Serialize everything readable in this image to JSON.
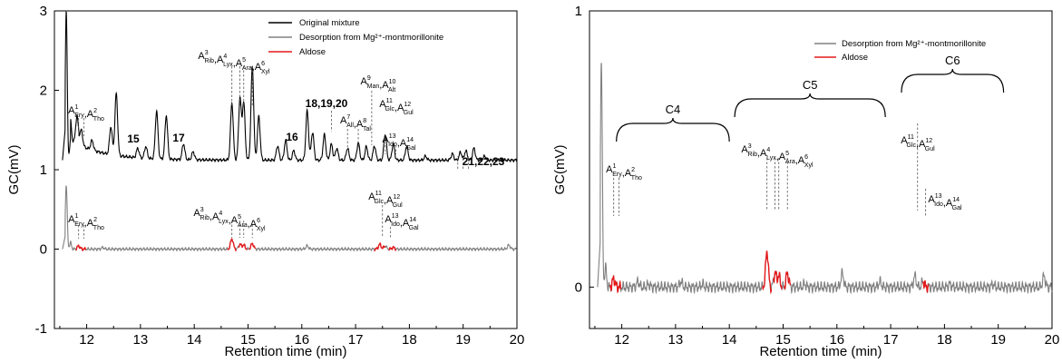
{
  "chart_data": [
    {
      "type": "line",
      "xlabel": "Retention time (min)",
      "ylabel": "GC(mV)",
      "xlim": [
        11.4,
        20
      ],
      "ylim": [
        -1,
        3
      ],
      "x_ticks": [
        "12",
        "13",
        "14",
        "15",
        "16",
        "17",
        "18",
        "19",
        "20"
      ],
      "y_ticks": [
        "-1",
        "0",
        "1",
        "2",
        "3"
      ],
      "legend_position": "top-right",
      "legend": [
        "Original mixture",
        "Desorption from Mg²⁺-montmorillonite",
        "Aldose"
      ],
      "series": [
        {
          "name": "Original mixture",
          "color": "#000000",
          "baseline": 1.12,
          "peaks": [
            [
              11.62,
              1.88
            ],
            [
              11.7,
              0.25
            ],
            [
              11.82,
              0.35
            ],
            [
              11.9,
              0.2
            ],
            [
              12.1,
              0.12
            ],
            [
              12.45,
              0.35
            ],
            [
              12.55,
              0.78
            ],
            [
              12.95,
              0.12
            ],
            [
              13.1,
              0.15
            ],
            [
              13.3,
              0.6
            ],
            [
              13.48,
              0.55
            ],
            [
              13.8,
              0.2
            ],
            [
              13.98,
              0.1
            ],
            [
              14.7,
              0.72
            ],
            [
              14.85,
              0.78
            ],
            [
              14.92,
              0.72
            ],
            [
              15.08,
              1.18
            ],
            [
              15.2,
              0.55
            ],
            [
              15.55,
              0.18
            ],
            [
              15.7,
              0.25
            ],
            [
              15.85,
              0.12
            ],
            [
              16.1,
              0.62
            ],
            [
              16.2,
              0.35
            ],
            [
              16.42,
              0.32
            ],
            [
              16.55,
              0.2
            ],
            [
              16.65,
              0.15
            ],
            [
              16.85,
              0.15
            ],
            [
              17.05,
              0.22
            ],
            [
              17.2,
              0.17
            ],
            [
              17.35,
              0.18
            ],
            [
              17.55,
              0.32
            ],
            [
              17.7,
              0.2
            ],
            [
              17.95,
              0.18
            ],
            [
              18.3,
              0.05
            ],
            [
              18.8,
              0.08
            ],
            [
              18.95,
              0.1
            ],
            [
              19.05,
              0.12
            ],
            [
              19.2,
              0.15
            ],
            [
              19.4,
              0.05
            ]
          ],
          "tail_value": 1.1
        },
        {
          "name": "Desorption from Mg²⁺-montmorillonite",
          "color": "#808080",
          "baseline": 0.0,
          "peaks": [
            [
              11.62,
              0.8
            ],
            [
              11.7,
              0.08
            ],
            [
              11.85,
              0.04
            ],
            [
              12.3,
              0.02
            ],
            [
              14.7,
              0.13
            ],
            [
              14.85,
              0.06
            ],
            [
              14.92,
              0.05
            ],
            [
              15.08,
              0.07
            ],
            [
              16.1,
              0.04
            ],
            [
              17.45,
              0.06
            ],
            [
              17.55,
              0.04
            ],
            [
              17.7,
              0.02
            ],
            [
              19.85,
              0.05
            ]
          ],
          "tail_value": 0.0
        },
        {
          "name": "Aldose",
          "color": "#e41a1c",
          "segments": [
            [
              11.8,
              11.98
            ],
            [
              14.62,
              14.78
            ],
            [
              14.82,
              14.98
            ],
            [
              15.02,
              15.14
            ],
            [
              17.35,
              17.55
            ],
            [
              17.62,
              17.75
            ]
          ]
        }
      ],
      "annotations": [
        {
          "text": [
            "A",
            "1",
            "Ery",
            ",A",
            "2",
            "Tho"
          ],
          "x": 11.95
        },
        {
          "text": [
            "A",
            "3",
            "Rib",
            ",A",
            "4",
            "Lyx",
            ",A",
            "5",
            "Ara",
            ",A",
            "6",
            "Xyl"
          ],
          "x": 14.9
        },
        {
          "text": [
            "18,19,20"
          ],
          "x": 16.5
        },
        {
          "text": [
            "A",
            "7",
            "All",
            ",A",
            "8",
            "Tal"
          ],
          "x": 16.9
        },
        {
          "text": [
            "A",
            "9",
            "Man",
            ",A",
            "10",
            "Alt"
          ],
          "x": 17.4
        },
        {
          "text": [
            "A",
            "11",
            "Glc",
            ",A",
            "12",
            "Gul"
          ],
          "x": 17.55
        },
        {
          "text": [
            "A",
            "13",
            "Ido",
            ",A",
            "14",
            "Gal"
          ],
          "x": 17.8
        },
        {
          "text": [
            "15"
          ],
          "x": 13.0
        },
        {
          "text": [
            "16"
          ],
          "x": 15.85
        },
        {
          "text": [
            "17"
          ],
          "x": 13.8
        },
        {
          "text": [
            "21,22,23"
          ],
          "x": 19.2
        }
      ]
    },
    {
      "type": "line",
      "xlabel": "Retention time (min)",
      "ylabel": "GC(mV)",
      "xlim": [
        11.4,
        20
      ],
      "ylim": [
        -0.15,
        1
      ],
      "x_ticks": [
        "12",
        "13",
        "14",
        "15",
        "16",
        "17",
        "18",
        "19",
        "20"
      ],
      "y_ticks": [
        "0",
        "1"
      ],
      "legend_position": "top-right",
      "legend": [
        "Desorption from Mg²⁺-montmorillonite",
        "Aldose"
      ],
      "series": [
        {
          "name": "Desorption from Mg²⁺-montmorillonite",
          "color": "#808080",
          "baseline": 0.0,
          "peaks": [
            [
              11.62,
              0.82
            ],
            [
              11.7,
              0.07
            ],
            [
              11.85,
              0.03
            ],
            [
              12.3,
              0.02
            ],
            [
              12.5,
              0.01
            ],
            [
              13.1,
              0.02
            ],
            [
              13.5,
              0.01
            ],
            [
              14.7,
              0.13
            ],
            [
              14.85,
              0.05
            ],
            [
              14.92,
              0.04
            ],
            [
              15.08,
              0.05
            ],
            [
              15.4,
              0.01
            ],
            [
              16.1,
              0.05
            ],
            [
              16.8,
              0.02
            ],
            [
              17.45,
              0.04
            ],
            [
              17.6,
              0.02
            ],
            [
              18.1,
              0.01
            ],
            [
              18.9,
              0.01
            ],
            [
              19.85,
              0.04
            ]
          ],
          "tail_value": 0.0
        },
        {
          "name": "Aldose",
          "color": "#e41a1c",
          "segments": [
            [
              11.78,
              11.98
            ],
            [
              14.62,
              14.78
            ],
            [
              14.82,
              14.98
            ],
            [
              15.02,
              15.14
            ],
            [
              17.6,
              17.7
            ]
          ]
        }
      ],
      "groups": [
        {
          "label": "C4",
          "x_start": 11.9,
          "x_end": 14.0
        },
        {
          "label": "C5",
          "x_start": 14.1,
          "x_end": 16.9
        },
        {
          "label": "C6",
          "x_start": 17.2,
          "x_end": 19.1
        }
      ],
      "annotations": [
        {
          "text": [
            "A",
            "1",
            "Ery",
            ",A",
            "2",
            "Tho"
          ],
          "x": 11.95
        },
        {
          "text": [
            "A",
            "3",
            "Rib",
            ",A",
            "4",
            "Lyx",
            ",A",
            "5",
            "Ara",
            ",A",
            "6",
            "Xyl"
          ],
          "x": 14.9
        },
        {
          "text": [
            "A",
            "11",
            "Glc",
            ",A",
            "12",
            "Gul"
          ],
          "x": 17.55
        },
        {
          "text": [
            "A",
            "13",
            "Ido",
            ",A",
            "14",
            "Gal"
          ],
          "x": 17.8
        }
      ]
    }
  ]
}
